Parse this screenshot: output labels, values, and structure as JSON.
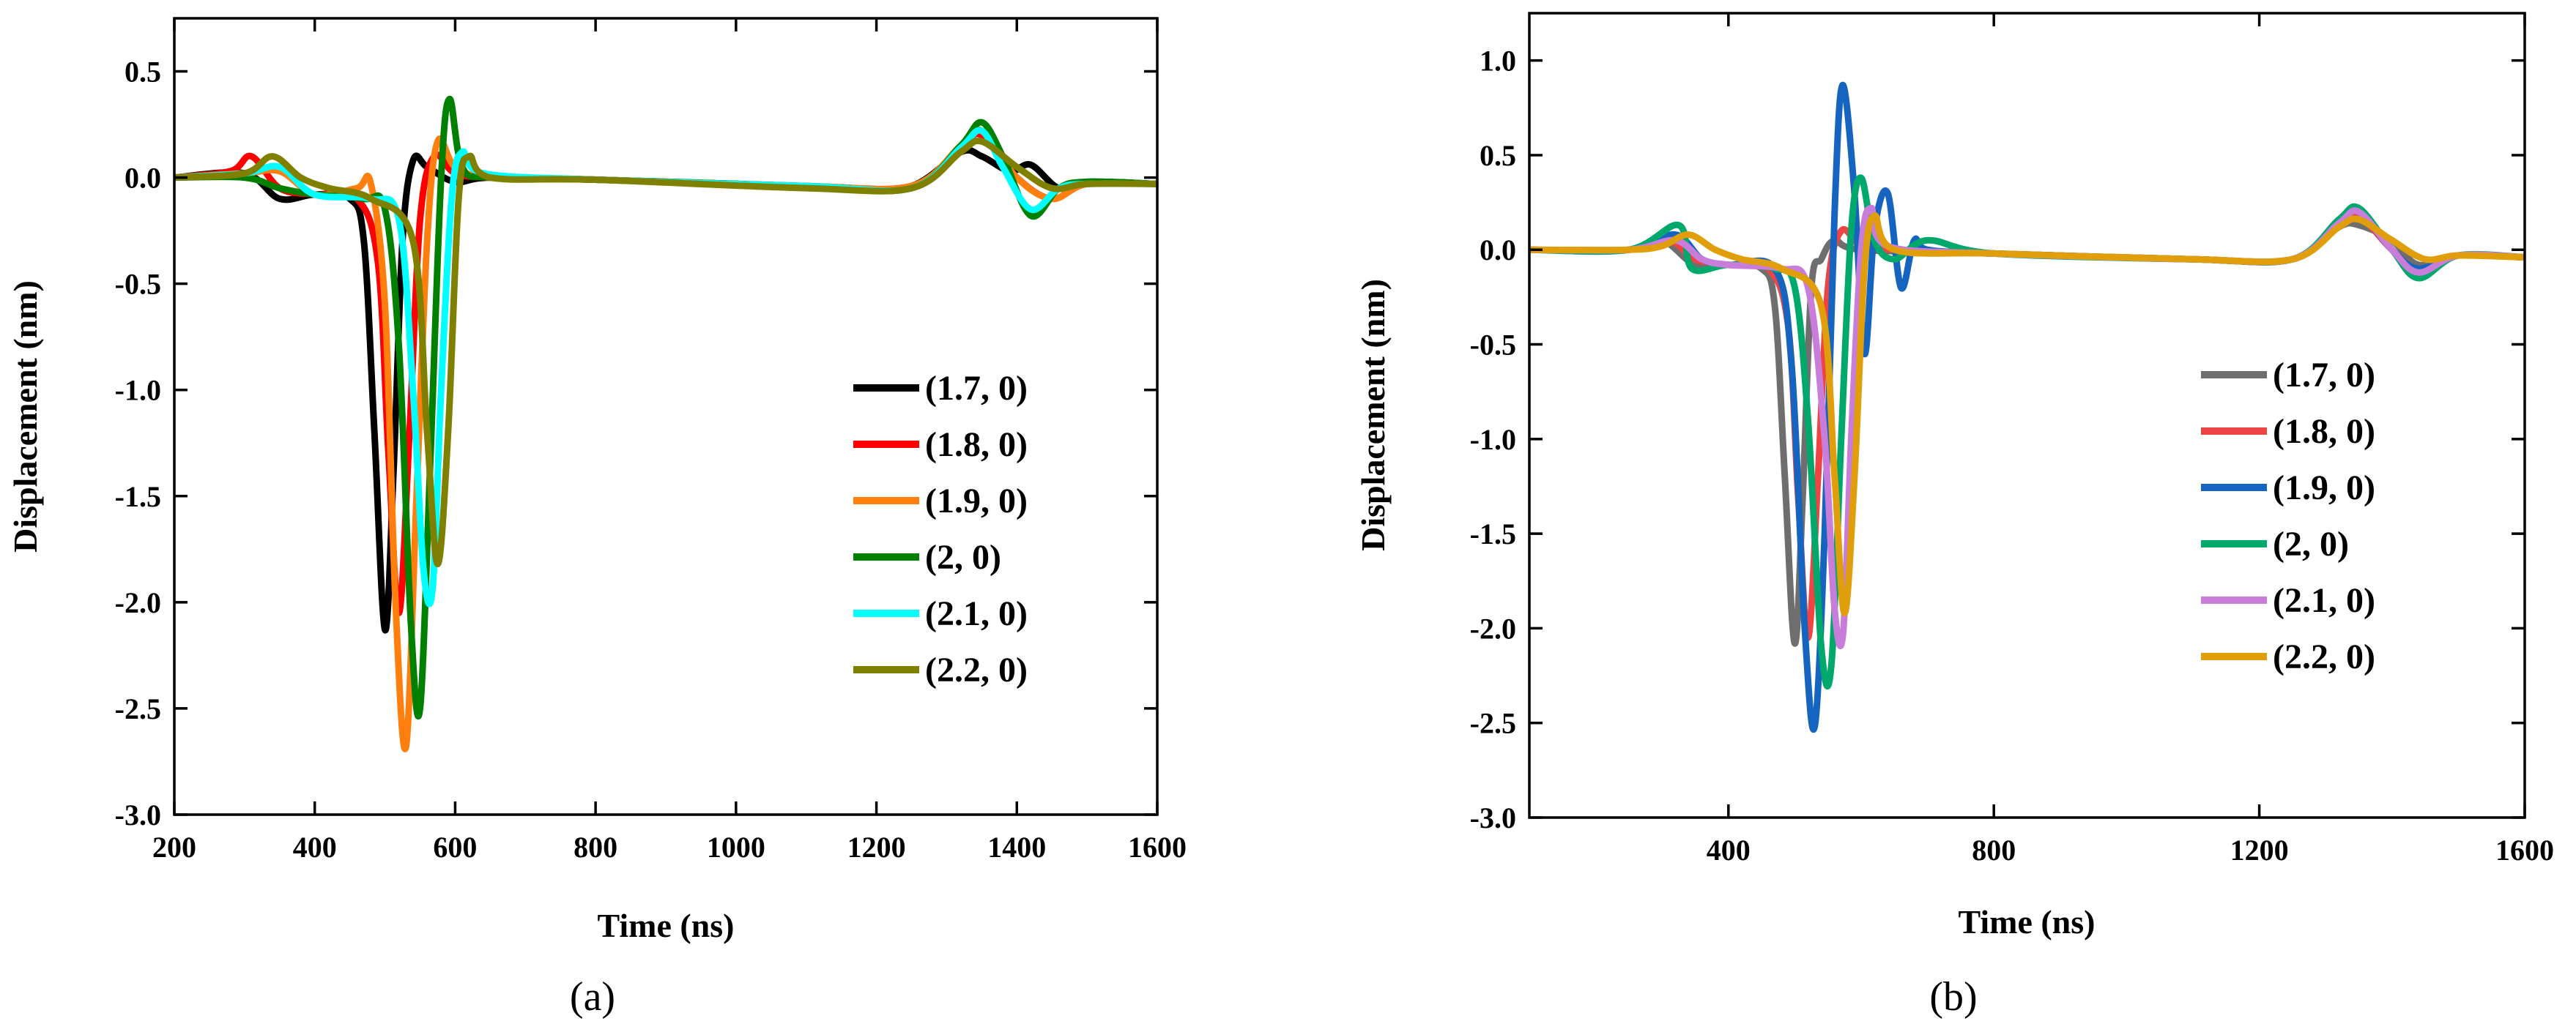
{
  "chart_data": [
    {
      "type": "line",
      "panel_label": "(a)",
      "xlabel": "Time (ns)",
      "ylabel": "Displacement (nm)",
      "xlim": [
        200,
        1600
      ],
      "ylim": [
        -3.0,
        0.75
      ],
      "xticks": [
        200,
        400,
        600,
        800,
        1000,
        1200,
        1400,
        1600
      ],
      "xtick_labels": [
        "200",
        "400",
        "600",
        "800",
        "1000",
        "1200",
        "1400",
        "1600"
      ],
      "yticks": [
        -3.0,
        -2.5,
        -2.0,
        -1.5,
        -1.0,
        -0.5,
        0.0,
        0.5
      ],
      "ytick_labels": [
        "-3.0",
        "-2.5",
        "-2.0",
        "-1.5",
        "-1.0",
        "-0.5",
        "0.0",
        "0.5"
      ],
      "legend_position": "center-right",
      "series": [
        {
          "name": "(1.7, 0)",
          "color": "#000000",
          "x": [
            200,
            300,
            350,
            400,
            450,
            470,
            485,
            500,
            512,
            525,
            540,
            560,
            600,
            650,
            800,
            1000,
            1150,
            1250,
            1320,
            1350,
            1390,
            1420,
            1460,
            1500,
            1600
          ],
          "y": [
            0,
            0.02,
            -0.1,
            -0.08,
            -0.1,
            -0.3,
            -1.2,
            -2.13,
            -1.4,
            -0.3,
            0.08,
            0.05,
            -0.02,
            0,
            -0.01,
            -0.03,
            -0.05,
            -0.04,
            0.12,
            0.1,
            0.03,
            0.06,
            -0.05,
            -0.02,
            -0.03
          ]
        },
        {
          "name": "(1.8, 0)",
          "color": "#ff0000",
          "x": [
            200,
            280,
            310,
            350,
            400,
            460,
            490,
            505,
            520,
            535,
            550,
            570,
            600,
            650,
            800,
            1100,
            1250,
            1320,
            1350,
            1400,
            1450,
            1500,
            1600
          ],
          "y": [
            0,
            0.03,
            0.1,
            -0.05,
            -0.08,
            -0.1,
            -0.4,
            -1.3,
            -2.05,
            -1.2,
            -0.2,
            0.1,
            0.02,
            0,
            -0.01,
            -0.04,
            -0.04,
            0.14,
            0.2,
            0.0,
            -0.1,
            -0.03,
            -0.03
          ]
        },
        {
          "name": "(1.9, 0)",
          "color": "#ff7f0e",
          "x": [
            200,
            300,
            350,
            400,
            460,
            480,
            500,
            515,
            530,
            545,
            560,
            575,
            600,
            650,
            800,
            1100,
            1250,
            1320,
            1350,
            1400,
            1450,
            1500,
            1600
          ],
          "y": [
            0,
            0.02,
            0.03,
            -0.08,
            -0.05,
            -0.03,
            -0.6,
            -2.0,
            -2.68,
            -1.5,
            -0.3,
            0.17,
            0.05,
            0,
            -0.01,
            -0.04,
            -0.04,
            0.15,
            0.22,
            0.0,
            -0.1,
            -0.03,
            -0.03
          ]
        },
        {
          "name": "(2, 0)",
          "color": "#008000",
          "x": [
            200,
            300,
            350,
            400,
            470,
            500,
            520,
            537,
            550,
            565,
            580,
            592,
            610,
            650,
            800,
            1100,
            1250,
            1320,
            1350,
            1380,
            1420,
            1460,
            1500,
            1600
          ],
          "y": [
            0,
            0.0,
            -0.05,
            -0.08,
            -0.1,
            -0.15,
            -0.8,
            -2.1,
            -2.5,
            -1.3,
            0.0,
            0.37,
            0.05,
            0,
            -0.01,
            -0.04,
            -0.05,
            0.15,
            0.26,
            0.1,
            -0.18,
            -0.05,
            -0.02,
            -0.03
          ]
        },
        {
          "name": "(2.1, 0)",
          "color": "#00ffff",
          "x": [
            200,
            300,
            350,
            400,
            480,
            520,
            540,
            555,
            568,
            580,
            595,
            610,
            640,
            800,
            1100,
            1250,
            1320,
            1350,
            1380,
            1420,
            1460,
            1500,
            1600
          ],
          "y": [
            0,
            0.02,
            0.05,
            -0.08,
            -0.1,
            -0.2,
            -1.0,
            -1.85,
            -1.93,
            -1.0,
            -0.1,
            0.12,
            0.02,
            -0.01,
            -0.04,
            -0.05,
            0.14,
            0.22,
            0.05,
            -0.15,
            -0.05,
            -0.03,
            -0.03
          ]
        },
        {
          "name": "(2.2, 0)",
          "color": "#808000",
          "x": [
            200,
            300,
            340,
            380,
            420,
            480,
            540,
            560,
            575,
            590,
            605,
            620,
            650,
            800,
            1100,
            1250,
            1320,
            1350,
            1400,
            1450,
            1500,
            1600
          ],
          "y": [
            0,
            0.02,
            0.1,
            0.0,
            -0.05,
            -0.1,
            -0.3,
            -1.2,
            -1.82,
            -1.2,
            -0.1,
            0.1,
            0.0,
            -0.01,
            -0.05,
            -0.05,
            0.12,
            0.17,
            0.05,
            -0.05,
            -0.03,
            -0.03
          ]
        }
      ]
    },
    {
      "type": "line",
      "panel_label": "(b)",
      "xlabel": "Time (ns)",
      "ylabel": "Displacement (nm)",
      "xlim": [
        100,
        1600
      ],
      "ylim": [
        -3.0,
        1.25
      ],
      "xticks": [
        400,
        800,
        1200,
        1600
      ],
      "xtick_labels": [
        "400",
        "800",
        "1200",
        "1600"
      ],
      "yticks": [
        -3.0,
        -2.5,
        -2.0,
        -1.5,
        -1.0,
        -0.5,
        0.0,
        0.5,
        1.0
      ],
      "ytick_labels": [
        "-3.0",
        "-2.5",
        "-2.0",
        "-1.5",
        "-1.0",
        "-0.5",
        "0.0",
        "0.5",
        "1.0"
      ],
      "legend_position": "center-right",
      "series": [
        {
          "name": "(1.7, 0)",
          "color": "#6e6e6e",
          "x": [
            100,
            250,
            300,
            350,
            400,
            450,
            470,
            485,
            500,
            512,
            525,
            540,
            560,
            600,
            800,
            1100,
            1250,
            1320,
            1350,
            1400,
            1440,
            1500,
            1600
          ],
          "y": [
            0,
            0,
            0.05,
            -0.08,
            -0.08,
            -0.1,
            -0.3,
            -1.2,
            -2.08,
            -1.3,
            -0.2,
            -0.05,
            0.05,
            0.0,
            -0.02,
            -0.05,
            -0.05,
            0.12,
            0.13,
            0.05,
            -0.08,
            -0.03,
            -0.04
          ]
        },
        {
          "name": "(1.8, 0)",
          "color": "#ef4444",
          "x": [
            100,
            250,
            310,
            350,
            400,
            460,
            490,
            505,
            520,
            535,
            550,
            570,
            600,
            650,
            800,
            1100,
            1250,
            1320,
            1350,
            1400,
            1440,
            1500,
            1600
          ],
          "y": [
            0,
            0,
            0.05,
            -0.05,
            -0.08,
            -0.1,
            -0.4,
            -1.3,
            -2.05,
            -1.2,
            -0.2,
            0.1,
            0.02,
            0,
            -0.02,
            -0.05,
            -0.05,
            0.14,
            0.18,
            0.0,
            -0.1,
            -0.03,
            -0.04
          ]
        },
        {
          "name": "(1.9, 0)",
          "color": "#1565c0",
          "x": [
            100,
            250,
            320,
            360,
            400,
            470,
            495,
            515,
            530,
            545,
            560,
            572,
            590,
            605,
            620,
            640,
            660,
            680,
            700,
            800,
            1100,
            1250,
            1320,
            1350,
            1400,
            1440,
            1500,
            1600
          ],
          "y": [
            0,
            0,
            0.08,
            -0.05,
            -0.08,
            -0.1,
            -0.6,
            -2.0,
            -2.52,
            -1.5,
            0.2,
            0.87,
            0.3,
            -0.55,
            0.1,
            0.3,
            -0.2,
            0.05,
            0.0,
            -0.02,
            -0.05,
            -0.05,
            0.15,
            0.2,
            0.0,
            -0.1,
            -0.03,
            -0.04
          ]
        },
        {
          "name": "(2, 0)",
          "color": "#00a86b",
          "x": [
            100,
            250,
            325,
            345,
            400,
            470,
            500,
            520,
            540,
            555,
            570,
            585,
            600,
            620,
            650,
            700,
            800,
            1100,
            1250,
            1320,
            1350,
            1400,
            1440,
            1500,
            1600
          ],
          "y": [
            0,
            0,
            0.13,
            -0.1,
            -0.08,
            -0.1,
            -0.2,
            -0.9,
            -2.1,
            -2.2,
            -1.0,
            0.1,
            0.38,
            0.05,
            -0.05,
            0.05,
            -0.02,
            -0.05,
            -0.05,
            0.16,
            0.22,
            0.0,
            -0.15,
            -0.03,
            -0.04
          ]
        },
        {
          "name": "(2.1, 0)",
          "color": "#c77dd9",
          "x": [
            100,
            250,
            320,
            360,
            400,
            480,
            520,
            545,
            560,
            573,
            585,
            600,
            615,
            640,
            800,
            1100,
            1250,
            1320,
            1350,
            1400,
            1440,
            1500,
            1600
          ],
          "y": [
            0,
            0,
            0.05,
            -0.05,
            -0.08,
            -0.1,
            -0.2,
            -1.0,
            -1.9,
            -2.02,
            -1.0,
            0.0,
            0.22,
            0.02,
            -0.02,
            -0.05,
            -0.05,
            0.14,
            0.2,
            0.0,
            -0.12,
            -0.03,
            -0.04
          ]
        },
        {
          "name": "(2.2, 0)",
          "color": "#e09e0b",
          "x": [
            100,
            250,
            300,
            340,
            380,
            420,
            480,
            540,
            560,
            575,
            590,
            605,
            620,
            650,
            800,
            1100,
            1250,
            1320,
            1350,
            1400,
            1450,
            1500,
            1600
          ],
          "y": [
            0,
            0,
            0.02,
            0.08,
            0.0,
            -0.05,
            -0.1,
            -0.3,
            -1.2,
            -1.92,
            -1.2,
            -0.1,
            0.18,
            0.0,
            -0.02,
            -0.05,
            -0.05,
            0.12,
            0.16,
            0.05,
            -0.05,
            -0.03,
            -0.04
          ]
        }
      ]
    }
  ]
}
